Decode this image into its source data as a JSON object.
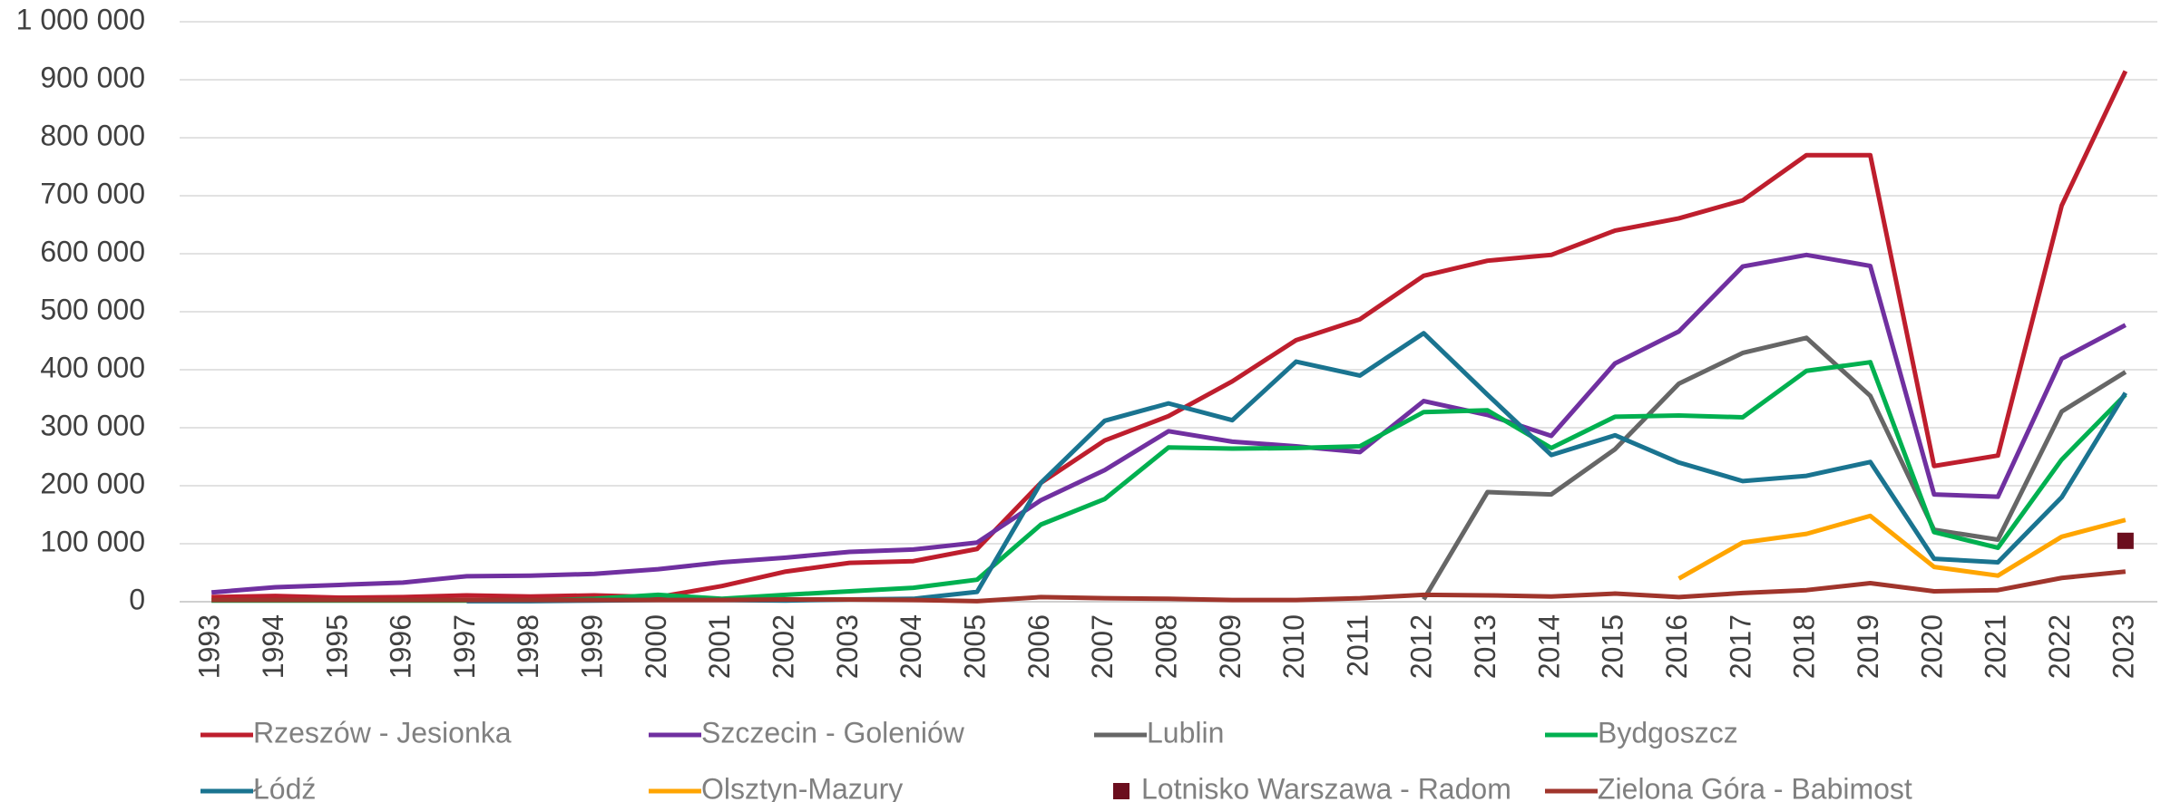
{
  "chart_data": {
    "type": "line",
    "categories": [
      "1993",
      "1994",
      "1995",
      "1996",
      "1997",
      "1998",
      "1999",
      "2000",
      "2001",
      "2002",
      "2003",
      "2004",
      "2005",
      "2006",
      "2007",
      "2008",
      "2009",
      "2010",
      "2011",
      "2012",
      "2013",
      "2014",
      "2015",
      "2016",
      "2017",
      "2018",
      "2019",
      "2020",
      "2021",
      "2022",
      "2023"
    ],
    "series": [
      {
        "name": "Rzeszów - Jesionka",
        "color": "#be1e2d",
        "values": [
          8000,
          10000,
          7000,
          8000,
          11000,
          9000,
          11000,
          8000,
          27000,
          52000,
          67000,
          70000,
          91000,
          205000,
          278000,
          320000,
          380000,
          451000,
          487000,
          562000,
          588000,
          598000,
          640000,
          661000,
          692000,
          770000,
          770000,
          234000,
          252000,
          683000,
          915000
        ]
      },
      {
        "name": "Szczecin - Goleniów",
        "color": "#7030a0",
        "values": [
          16000,
          25000,
          29000,
          33000,
          44000,
          45000,
          48000,
          56000,
          68000,
          76000,
          86000,
          90000,
          102000,
          175000,
          227000,
          294000,
          276000,
          268000,
          258000,
          346000,
          322000,
          286000,
          411000,
          466000,
          578000,
          598000,
          579000,
          185000,
          181000,
          419000,
          477000
        ]
      },
      {
        "name": "Lublin",
        "color": "#666666",
        "values": [
          null,
          null,
          null,
          null,
          null,
          null,
          null,
          null,
          null,
          null,
          null,
          null,
          null,
          null,
          null,
          null,
          null,
          null,
          null,
          4000,
          189000,
          185000,
          263000,
          376000,
          429000,
          455000,
          355000,
          124000,
          107000,
          328000,
          396000
        ]
      },
      {
        "name": "Bydgoszcz",
        "color": "#00b050",
        "values": [
          2000,
          2000,
          2000,
          2000,
          2000,
          2000,
          5000,
          12000,
          5000,
          12000,
          18000,
          24000,
          38000,
          133000,
          177000,
          266000,
          264000,
          265000,
          268000,
          327000,
          330000,
          265000,
          319000,
          321000,
          318000,
          398000,
          413000,
          120000,
          93000,
          245000,
          357000
        ]
      },
      {
        "name": "Łódź",
        "color": "#1a7490",
        "values": [
          null,
          null,
          null,
          null,
          1000,
          1000,
          2000,
          3000,
          3000,
          2000,
          4000,
          5000,
          17000,
          205000,
          312000,
          342000,
          313000,
          414000,
          390000,
          463000,
          357000,
          253000,
          287000,
          240000,
          208000,
          217000,
          241000,
          74000,
          68000,
          180000,
          360000
        ]
      },
      {
        "name": "Olsztyn-Mazury",
        "color": "#ffa500",
        "values": [
          null,
          null,
          null,
          null,
          null,
          null,
          null,
          null,
          null,
          null,
          null,
          null,
          null,
          null,
          null,
          null,
          null,
          null,
          null,
          null,
          null,
          null,
          null,
          40000,
          102000,
          117000,
          148000,
          60000,
          45000,
          112000,
          141000
        ]
      },
      {
        "name": "Lotnisko Warszawa - Radom",
        "color": "#6b0e1e",
        "marker": "square",
        "values": [
          null,
          null,
          null,
          null,
          null,
          null,
          null,
          null,
          null,
          null,
          null,
          null,
          null,
          null,
          null,
          null,
          null,
          null,
          null,
          null,
          null,
          null,
          null,
          null,
          null,
          null,
          null,
          null,
          null,
          null,
          105000
        ]
      },
      {
        "name": "Zielona Góra - Babimost",
        "color": "#a0352c",
        "values": [
          3000,
          3000,
          3000,
          3000,
          3000,
          3000,
          3000,
          3000,
          3000,
          4000,
          4000,
          3000,
          1000,
          8000,
          6000,
          5000,
          3000,
          3000,
          6000,
          12000,
          11000,
          9000,
          14000,
          8000,
          15000,
          20000,
          32000,
          18000,
          20000,
          41000,
          52000
        ]
      }
    ],
    "ylim": [
      0,
      1000000
    ],
    "yticks": [
      0,
      {
        "value": 100000,
        "label": "100 000"
      },
      {
        "value": 200000,
        "label": "200 000"
      },
      {
        "value": 300000,
        "label": "300 000"
      },
      {
        "value": 400000,
        "label": "400 000"
      },
      {
        "value": 500000,
        "label": "500 000"
      },
      {
        "value": 600000,
        "label": "600 000"
      },
      {
        "value": 700000,
        "label": "700 000"
      },
      {
        "value": 800000,
        "label": "800 000"
      },
      {
        "value": 900000,
        "label": "900 000"
      },
      {
        "value": 1000000,
        "label": "1 000 000"
      }
    ],
    "grid": true,
    "legend": "bottom"
  }
}
